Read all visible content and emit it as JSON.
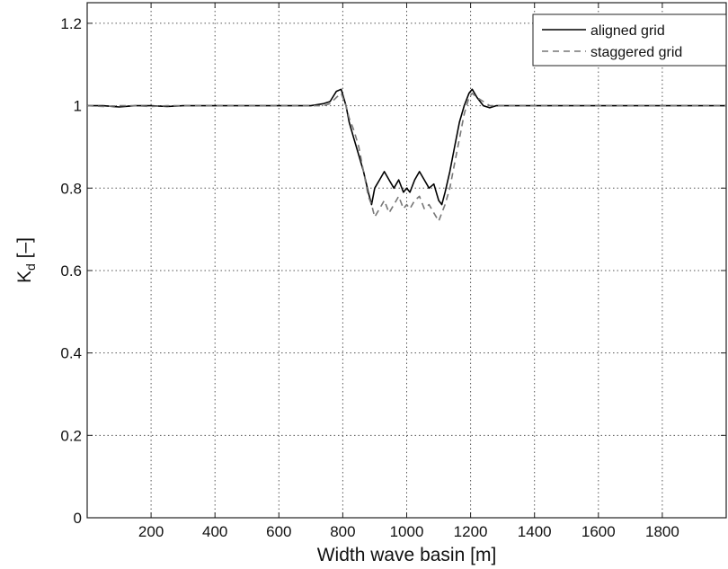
{
  "chart_data": {
    "type": "line",
    "title": "",
    "xlabel": "Width wave basin [m]",
    "ylabel_main": "K",
    "ylabel_sub": "d",
    "ylabel_unit": " [–]",
    "xlim": [
      0,
      2000
    ],
    "ylim": [
      0,
      1.25
    ],
    "xticks": [
      200,
      400,
      600,
      800,
      1000,
      1200,
      1400,
      1600,
      1800
    ],
    "yticks": [
      0,
      0.2,
      0.4,
      0.6,
      0.8,
      1,
      1.2
    ],
    "ytick_labels": [
      "0",
      "0.2",
      "0.4",
      "0.6",
      "0.8",
      "1",
      "1.2"
    ],
    "grid": true,
    "legend_position": "top-right",
    "series": [
      {
        "name": "aligned grid",
        "style": "solid",
        "color": "#000000",
        "x": [
          0,
          50,
          100,
          150,
          200,
          250,
          300,
          350,
          400,
          450,
          500,
          550,
          600,
          650,
          700,
          740,
          760,
          780,
          795,
          810,
          820,
          835,
          850,
          865,
          880,
          890,
          900,
          915,
          930,
          945,
          960,
          975,
          990,
          1000,
          1010,
          1025,
          1040,
          1055,
          1070,
          1085,
          1100,
          1110,
          1120,
          1135,
          1150,
          1165,
          1180,
          1195,
          1205,
          1220,
          1240,
          1260,
          1280,
          1300,
          1350,
          1400,
          1450,
          1500,
          1550,
          1600,
          1650,
          1700,
          1750,
          1800,
          1850,
          1900,
          1950,
          2000
        ],
        "y": [
          1.0,
          1.0,
          0.997,
          1.0,
          1.0,
          0.998,
          1.0,
          1.0,
          1.0,
          1.0,
          1.0,
          1.0,
          1.0,
          1.0,
          1.0,
          1.005,
          1.01,
          1.035,
          1.04,
          1.0,
          0.96,
          0.92,
          0.88,
          0.84,
          0.79,
          0.76,
          0.8,
          0.82,
          0.84,
          0.82,
          0.8,
          0.82,
          0.79,
          0.8,
          0.79,
          0.82,
          0.84,
          0.82,
          0.8,
          0.81,
          0.77,
          0.76,
          0.79,
          0.84,
          0.9,
          0.96,
          1.0,
          1.03,
          1.04,
          1.02,
          1.0,
          0.995,
          1.0,
          1.0,
          1.0,
          1.0,
          1.0,
          1.0,
          1.0,
          1.0,
          1.0,
          1.0,
          1.0,
          1.0,
          1.0,
          1.0,
          1.0,
          1.0
        ]
      },
      {
        "name": "staggered grid",
        "style": "dashed",
        "color": "#777777",
        "x": [
          0,
          50,
          100,
          150,
          200,
          250,
          300,
          350,
          400,
          450,
          500,
          550,
          600,
          650,
          700,
          740,
          760,
          780,
          795,
          810,
          820,
          835,
          850,
          865,
          880,
          890,
          900,
          915,
          930,
          945,
          960,
          975,
          990,
          1000,
          1010,
          1025,
          1040,
          1055,
          1070,
          1085,
          1100,
          1110,
          1120,
          1135,
          1150,
          1165,
          1180,
          1195,
          1205,
          1220,
          1240,
          1260,
          1280,
          1300,
          1350,
          1400,
          1450,
          1500,
          1550,
          1600,
          1650,
          1700,
          1750,
          1800,
          1850,
          1900,
          1950,
          2000
        ],
        "y": [
          1.0,
          0.998,
          1.0,
          1.0,
          0.998,
          1.0,
          1.0,
          1.0,
          1.0,
          1.0,
          1.0,
          1.0,
          1.0,
          1.0,
          1.0,
          1.0,
          1.005,
          1.02,
          1.03,
          1.0,
          0.97,
          0.94,
          0.9,
          0.84,
          0.78,
          0.76,
          0.73,
          0.75,
          0.77,
          0.74,
          0.76,
          0.78,
          0.75,
          0.76,
          0.75,
          0.77,
          0.78,
          0.75,
          0.76,
          0.74,
          0.72,
          0.74,
          0.76,
          0.8,
          0.86,
          0.92,
          0.98,
          1.02,
          1.03,
          1.02,
          1.01,
          1.0,
          1.0,
          1.0,
          1.0,
          1.0,
          1.0,
          1.0,
          1.0,
          1.0,
          1.0,
          1.0,
          1.0,
          1.0,
          1.0,
          1.0,
          1.0,
          1.0
        ]
      }
    ]
  }
}
